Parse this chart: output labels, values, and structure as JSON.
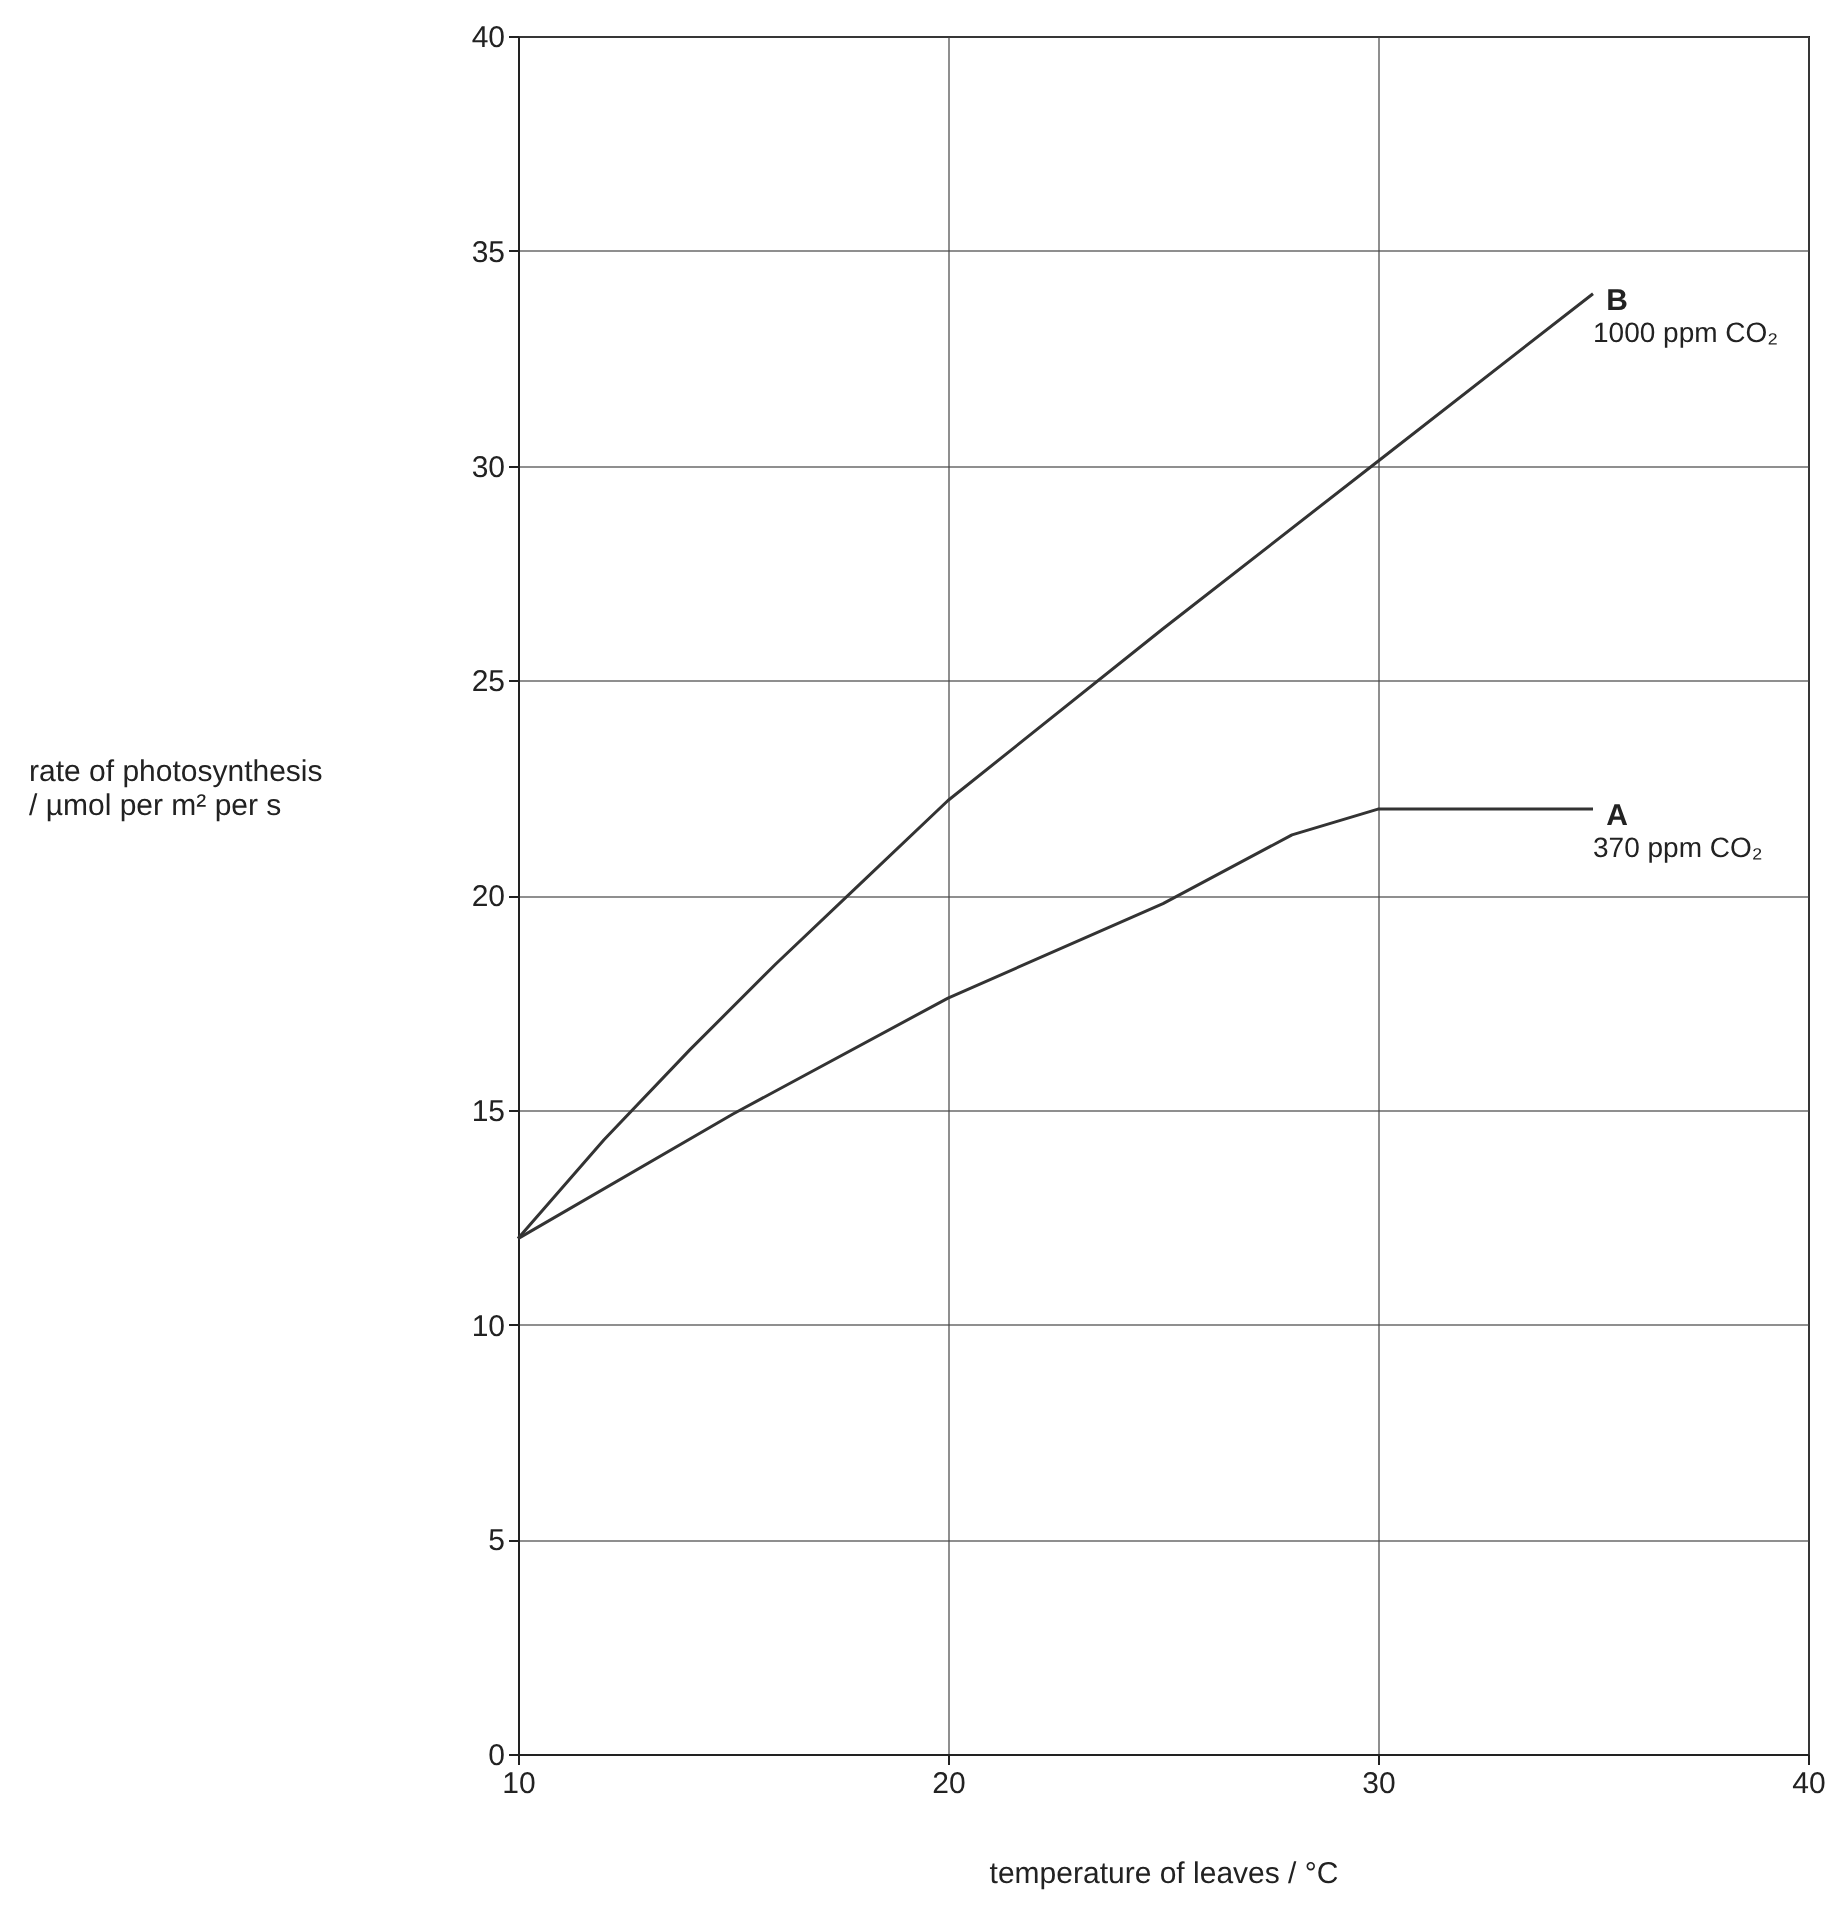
{
  "chart_data": {
    "type": "line",
    "xlabel": "temperature of leaves / °C",
    "ylabel": "rate of photosynthesis\n/ µmol per m² per s",
    "x": [
      10,
      12,
      14,
      16,
      18,
      20,
      25,
      30,
      35
    ],
    "series": [
      {
        "color": "#333333",
        "values": [
          12,
          14.3,
          16.4,
          18.4,
          20.3,
          22.2,
          26.2,
          30.1,
          34
        ]
      },
      {
        "x": [
          10,
          15,
          20,
          25,
          28,
          30,
          32,
          35
        ],
        "color": "#333333",
        "values": [
          12,
          14.9,
          17.6,
          19.8,
          21.4,
          22,
          22,
          22
        ]
      }
    ],
    "annotations": [
      "B",
      "1000 ppm CO₂",
      "A",
      "370 ppm CO₂"
    ],
    "xlim": [
      10,
      40
    ],
    "ylim": [
      0,
      40
    ],
    "xticks": [
      10,
      20,
      30,
      40
    ],
    "yticks": [
      0,
      5,
      10,
      15,
      20,
      25,
      30,
      35,
      40
    ],
    "grid": true,
    "marker": "none",
    "line_style": "solid"
  }
}
